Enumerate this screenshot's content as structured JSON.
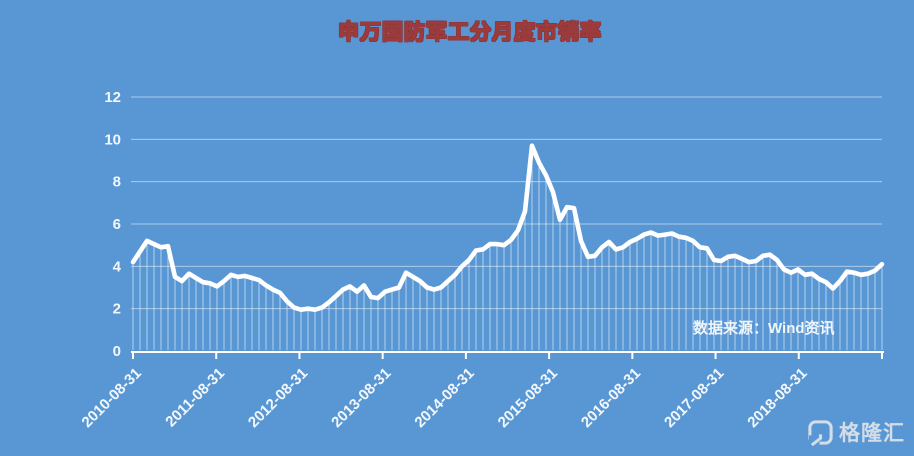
{
  "title": "申万国防军工分月度市销率",
  "source_note": "数据来源：Wind资讯",
  "watermark": "格隆汇",
  "colors": {
    "background": "#5997d4",
    "line": "#ffffff",
    "grid": "#ffffff",
    "axis": "#ffffff",
    "label": "#f2f7fc",
    "title_fill": "#ffffff",
    "title_stroke": "#9c3b3b",
    "watermark": "#dde3ea"
  },
  "chart_data": {
    "type": "area",
    "title": "申万国防军工分月度市销率",
    "xlabel": "",
    "ylabel": "",
    "ylim": [
      0,
      12
    ],
    "y_ticks": [
      0,
      2,
      4,
      6,
      8,
      10,
      12
    ],
    "x_tick_labels": [
      "2010-08-31",
      "2011-08-31",
      "2012-08-31",
      "2013-08-31",
      "2014-08-31",
      "2015-08-31",
      "2016-08-31",
      "2017-08-31",
      "2018-08-31"
    ],
    "x_start": "2010-08",
    "x_frequency": "monthly",
    "grid": "horizontal",
    "legend": "none",
    "fill_style": "vertical-drop-lines",
    "series": [
      {
        "name": "市销率",
        "values": [
          4.2,
          4.7,
          5.2,
          5.05,
          4.9,
          4.95,
          3.5,
          3.3,
          3.65,
          3.45,
          3.25,
          3.2,
          3.05,
          3.3,
          3.6,
          3.5,
          3.55,
          3.45,
          3.35,
          3.1,
          2.9,
          2.75,
          2.35,
          2.05,
          1.95,
          2.0,
          1.95,
          2.05,
          2.3,
          2.6,
          2.9,
          3.05,
          2.8,
          3.1,
          2.55,
          2.5,
          2.8,
          2.9,
          3.0,
          3.7,
          3.5,
          3.3,
          3.0,
          2.9,
          3.0,
          3.3,
          3.6,
          4.0,
          4.3,
          4.75,
          4.8,
          5.05,
          5.05,
          5.0,
          5.25,
          5.7,
          6.6,
          9.7,
          8.9,
          8.3,
          7.5,
          6.2,
          6.8,
          6.75,
          5.2,
          4.45,
          4.5,
          4.9,
          5.15,
          4.8,
          4.9,
          5.15,
          5.3,
          5.5,
          5.6,
          5.45,
          5.5,
          5.55,
          5.4,
          5.35,
          5.2,
          4.9,
          4.85,
          4.3,
          4.25,
          4.45,
          4.5,
          4.35,
          4.2,
          4.25,
          4.5,
          4.55,
          4.3,
          3.85,
          3.7,
          3.85,
          3.6,
          3.65,
          3.4,
          3.25,
          2.95,
          3.3,
          3.75,
          3.7,
          3.6,
          3.65,
          3.8,
          4.1
        ]
      }
    ]
  }
}
